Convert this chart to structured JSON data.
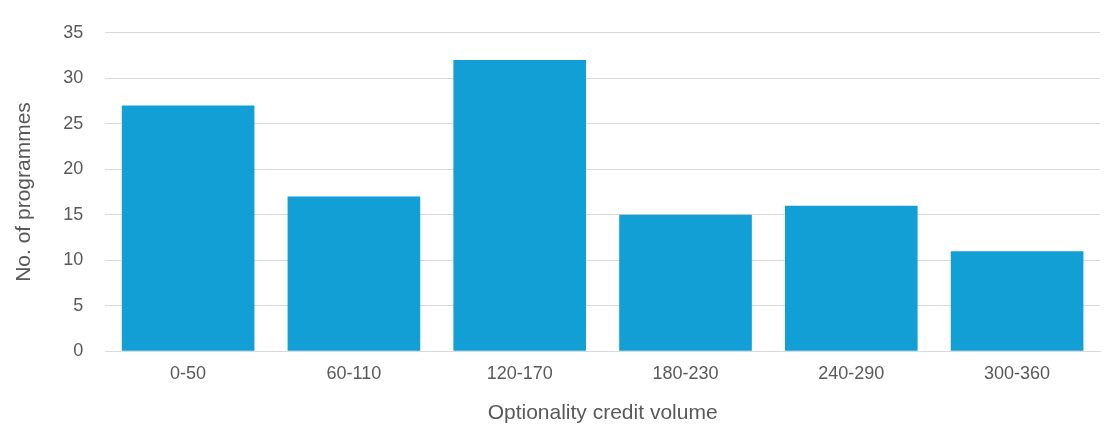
{
  "chart_data": {
    "type": "bar",
    "xlabel": "Optionality credit volume",
    "ylabel": "No. of programmes",
    "categories": [
      "0-50",
      "60-110",
      "120-170",
      "180-230",
      "240-290",
      "300-360"
    ],
    "values": [
      27,
      17,
      32,
      15,
      16,
      11
    ],
    "color": "#129fd6",
    "ylim": [
      0,
      35
    ],
    "yticks": [
      0,
      5,
      10,
      15,
      20,
      25,
      30,
      35
    ],
    "grid": "y",
    "legend": false
  }
}
